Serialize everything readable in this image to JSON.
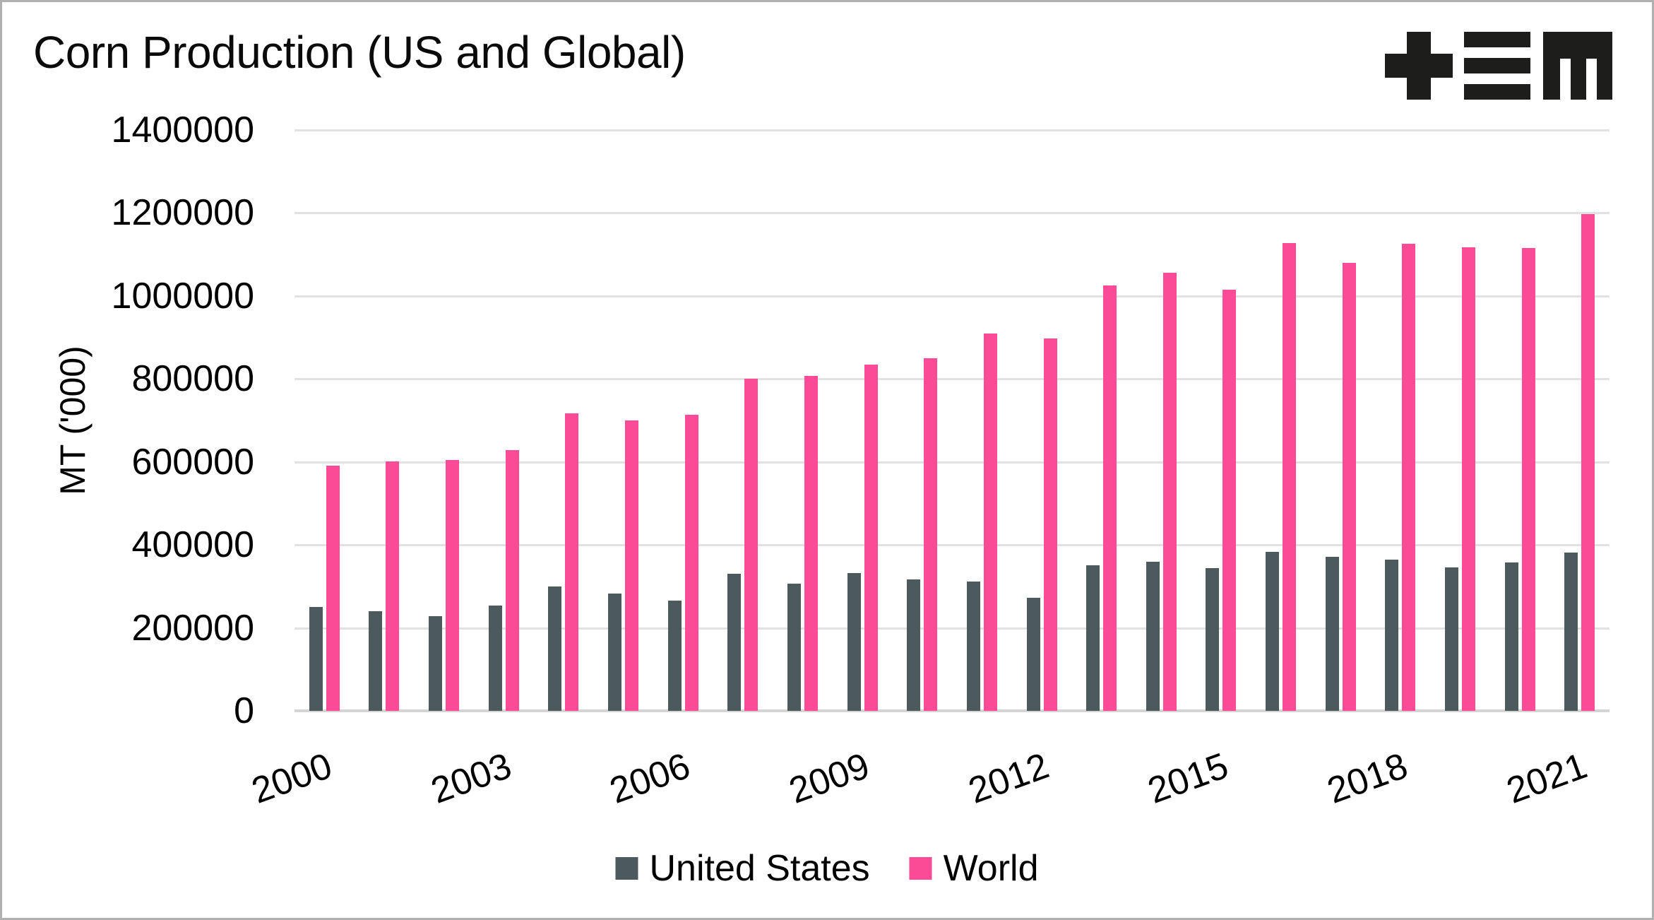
{
  "page": {
    "background": "#ffffff",
    "border_color": "#b0b0b0"
  },
  "header": {
    "title": "Corn Production (US and Global)",
    "logo": "plus-equals-m-logo",
    "logo_color": "#1d1d1b"
  },
  "chart_data": {
    "type": "bar",
    "title": "Corn Production (US and Global)",
    "xlabel": "",
    "ylabel": "MT ('000)",
    "ylim": [
      0,
      1400000
    ],
    "ytick_step": 200000,
    "ytick_labels": [
      "0",
      "200000",
      "400000",
      "600000",
      "800000",
      "1000000",
      "1200000",
      "1400000"
    ],
    "categories": [
      "2000",
      "2001",
      "2002",
      "2003",
      "2004",
      "2005",
      "2006",
      "2007",
      "2008",
      "2009",
      "2010",
      "2011",
      "2012",
      "2013",
      "2014",
      "2015",
      "2016",
      "2017",
      "2018",
      "2019",
      "2020",
      "2021"
    ],
    "xticks_shown": [
      "2000",
      "2003",
      "2006",
      "2009",
      "2012",
      "2015",
      "2018",
      "2021"
    ],
    "xtick_rotation_deg": -20,
    "grid": "horizontal-only",
    "gridline_color": "#e2e2e2",
    "axisline_color": "#d4d4d4",
    "legend_position": "bottom-center",
    "series": [
      {
        "name": "United States",
        "color": "#4C5A5E",
        "values": [
          250000,
          240000,
          228000,
          254000,
          300000,
          282000,
          266000,
          331000,
          306000,
          332000,
          316000,
          312000,
          272000,
          351000,
          360000,
          344000,
          384000,
          371000,
          364000,
          346000,
          357000,
          381000
        ]
      },
      {
        "name": "World",
        "color": "#FB4B97",
        "values": [
          591000,
          601000,
          604000,
          628000,
          717000,
          700000,
          714000,
          800000,
          807000,
          834000,
          850000,
          909000,
          897000,
          1026000,
          1056000,
          1015000,
          1128000,
          1079000,
          1126000,
          1117000,
          1115000,
          1198000
        ]
      }
    ]
  }
}
